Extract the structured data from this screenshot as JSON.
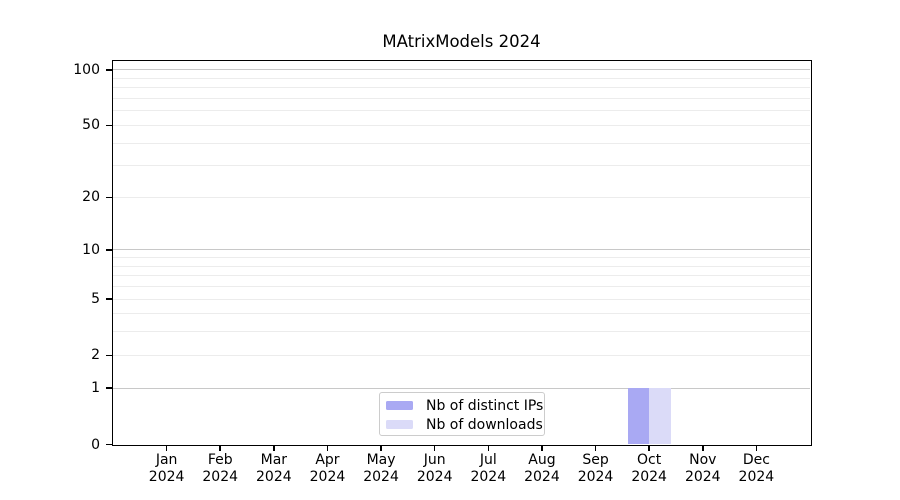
{
  "chart_data": {
    "type": "bar",
    "title": "MAtrixModels 2024",
    "categories": [
      {
        "month": "Jan",
        "year": "2024"
      },
      {
        "month": "Feb",
        "year": "2024"
      },
      {
        "month": "Mar",
        "year": "2024"
      },
      {
        "month": "Apr",
        "year": "2024"
      },
      {
        "month": "May",
        "year": "2024"
      },
      {
        "month": "Jun",
        "year": "2024"
      },
      {
        "month": "Jul",
        "year": "2024"
      },
      {
        "month": "Aug",
        "year": "2024"
      },
      {
        "month": "Sep",
        "year": "2024"
      },
      {
        "month": "Oct",
        "year": "2024"
      },
      {
        "month": "Nov",
        "year": "2024"
      },
      {
        "month": "Dec",
        "year": "2024"
      }
    ],
    "series": [
      {
        "name": "Nb of distinct IPs",
        "color": "#a9a9f3",
        "values": [
          0,
          0,
          0,
          0,
          0,
          0,
          0,
          0,
          0,
          1,
          0,
          0
        ]
      },
      {
        "name": "Nb of downloads",
        "color": "#dbdbf8",
        "values": [
          0,
          0,
          0,
          0,
          0,
          0,
          0,
          0,
          0,
          1,
          0,
          0
        ]
      }
    ],
    "xlabel": "",
    "ylabel": "",
    "yscale": "log1p",
    "ylim": [
      0,
      111
    ],
    "yticks": [
      0,
      1,
      2,
      5,
      10,
      20,
      50,
      100
    ],
    "y_major_gridlines": [
      1,
      10,
      100
    ],
    "y_minor_gridlines": [
      2,
      3,
      4,
      5,
      6,
      7,
      8,
      9,
      20,
      30,
      40,
      50,
      60,
      70,
      80,
      90
    ],
    "grid": "horizontal",
    "legend_position": "lower-center",
    "colors": {
      "major_grid": "#c8c8c8",
      "minor_grid": "#ececec",
      "axis": "#000000",
      "text": "#000000",
      "background": "#ffffff"
    }
  }
}
